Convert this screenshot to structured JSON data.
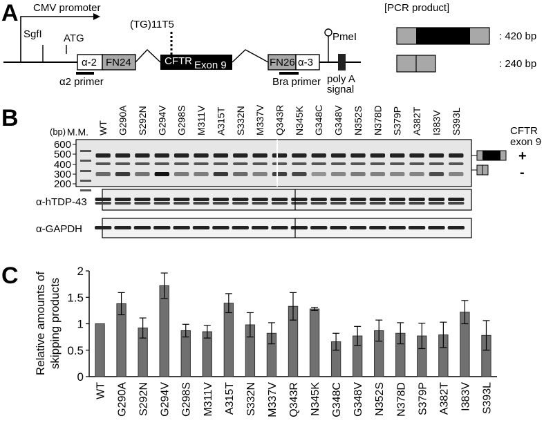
{
  "panel_a": {
    "letter": "A",
    "cmv_promoter": "CMV promoter",
    "sgfi": "SgfI",
    "atg": "ATG",
    "tg_label": "(TG)11T5",
    "alpha2": "α-2",
    "fn24": "FN24",
    "cftr": "CFTR",
    "exon9": "Exon 9",
    "fn26": "FN26",
    "alpha3": "α-3",
    "pmei": "PmeI",
    "poly_a_line1": "poly A",
    "poly_a_line2": "signal",
    "primer_a2": "α2 primer",
    "primer_bra": "Bra primer",
    "pcr_header": "[PCR product]",
    "size_420": ": 420 bp",
    "size_240": ": 240 bp"
  },
  "panel_b": {
    "letter": "B",
    "bp": "(bp)",
    "mm": "M.M.",
    "ladder": [
      "600",
      "500",
      "400",
      "300",
      "200"
    ],
    "lanes": [
      "WT",
      "G290A",
      "S292N",
      "G294V",
      "G298S",
      "M311V",
      "A315T",
      "S332N",
      "M337V",
      "Q343R",
      "N345K",
      "G348C",
      "G348V",
      "N352S",
      "N378D",
      "S379P",
      "A382T",
      "I383V",
      "S393L"
    ],
    "cftr_line1": "CFTR",
    "cftr_line2": "exon 9",
    "plus": "+",
    "minus": "-",
    "tdp_label": "α-hTDP-43",
    "gapdh_label": "α-GAPDH"
  },
  "panel_c": {
    "letter": "C",
    "ylabel_line1": "Relative amounts of",
    "ylabel_line2": "skipping products"
  },
  "chart_data": {
    "type": "bar",
    "categories": [
      "WT",
      "G290A",
      "S292N",
      "G294V",
      "G298S",
      "M311V",
      "A315T",
      "S332N",
      "M337V",
      "Q343R",
      "N345K",
      "G348C",
      "G348V",
      "N352S",
      "N378D",
      "S379P",
      "A382T",
      "I383V",
      "S393L"
    ],
    "values": [
      1.0,
      1.38,
      0.92,
      1.72,
      0.87,
      0.85,
      1.39,
      0.98,
      0.82,
      1.33,
      1.28,
      0.66,
      0.77,
      0.87,
      0.82,
      0.77,
      0.79,
      1.22,
      0.78
    ],
    "errors": [
      0,
      0.21,
      0.19,
      0.24,
      0.12,
      0.12,
      0.18,
      0.23,
      0.2,
      0.26,
      0.03,
      0.16,
      0.18,
      0.2,
      0.2,
      0.24,
      0.24,
      0.22,
      0.28
    ],
    "ylim": [
      0,
      2
    ],
    "yticks": [
      "0",
      "0.5",
      "1",
      "1.5",
      "2"
    ],
    "bar_color": "#707070",
    "grid": false
  }
}
